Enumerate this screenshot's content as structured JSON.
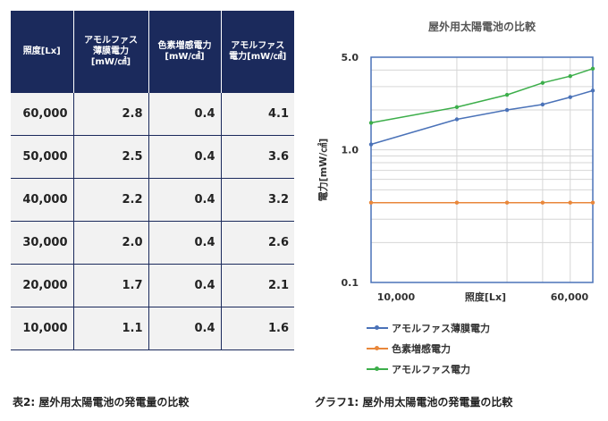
{
  "table": {
    "headers": [
      "照度[Lx]",
      "アモルファス\n薄膜電力\n[mW/㎠]",
      "色素増感電力\n[mW/㎠]",
      "アモルファス\n電力[mW/㎠]"
    ],
    "rows": [
      [
        "60,000",
        "2.8",
        "0.4",
        "4.1"
      ],
      [
        "50,000",
        "2.5",
        "0.4",
        "3.6"
      ],
      [
        "40,000",
        "2.2",
        "0.4",
        "3.2"
      ],
      [
        "30,000",
        "2.0",
        "0.4",
        "2.6"
      ],
      [
        "20,000",
        "1.7",
        "0.4",
        "2.1"
      ],
      [
        "10,000",
        "1.1",
        "0.4",
        "1.6"
      ]
    ],
    "caption": "表2: 屋外用太陽電池の発電量の比較"
  },
  "chart_caption": "グラフ1: 屋外用太陽電池の発電量の比較",
  "chart_data": {
    "type": "line",
    "title": "屋外用太陽電池の比較",
    "xlabel": "照度[Lx]",
    "ylabel": "電力[mW/㎠]",
    "x": [
      10000,
      20000,
      30000,
      40000,
      50000,
      60000
    ],
    "xlim": [
      10000,
      60000
    ],
    "x_tick_labels": [
      "10,000",
      "60,000"
    ],
    "y_scale": "log",
    "ylim": [
      0.1,
      5.0
    ],
    "y_tick_values": [
      0.1,
      1.0,
      5.0
    ],
    "y_tick_labels": [
      "0.1",
      "1.0",
      "5.0"
    ],
    "grid": true,
    "legend_position": "bottom",
    "series": [
      {
        "name": "アモルファス薄膜電力",
        "values": [
          1.1,
          1.7,
          2.0,
          2.2,
          2.5,
          2.8
        ],
        "color": "#4a72b8"
      },
      {
        "name": "色素増感電力",
        "values": [
          0.4,
          0.4,
          0.4,
          0.4,
          0.4,
          0.4
        ],
        "color": "#e9873a"
      },
      {
        "name": "アモルファス電力",
        "values": [
          1.6,
          2.1,
          2.6,
          3.2,
          3.6,
          4.1
        ],
        "color": "#3cae4a"
      }
    ]
  }
}
